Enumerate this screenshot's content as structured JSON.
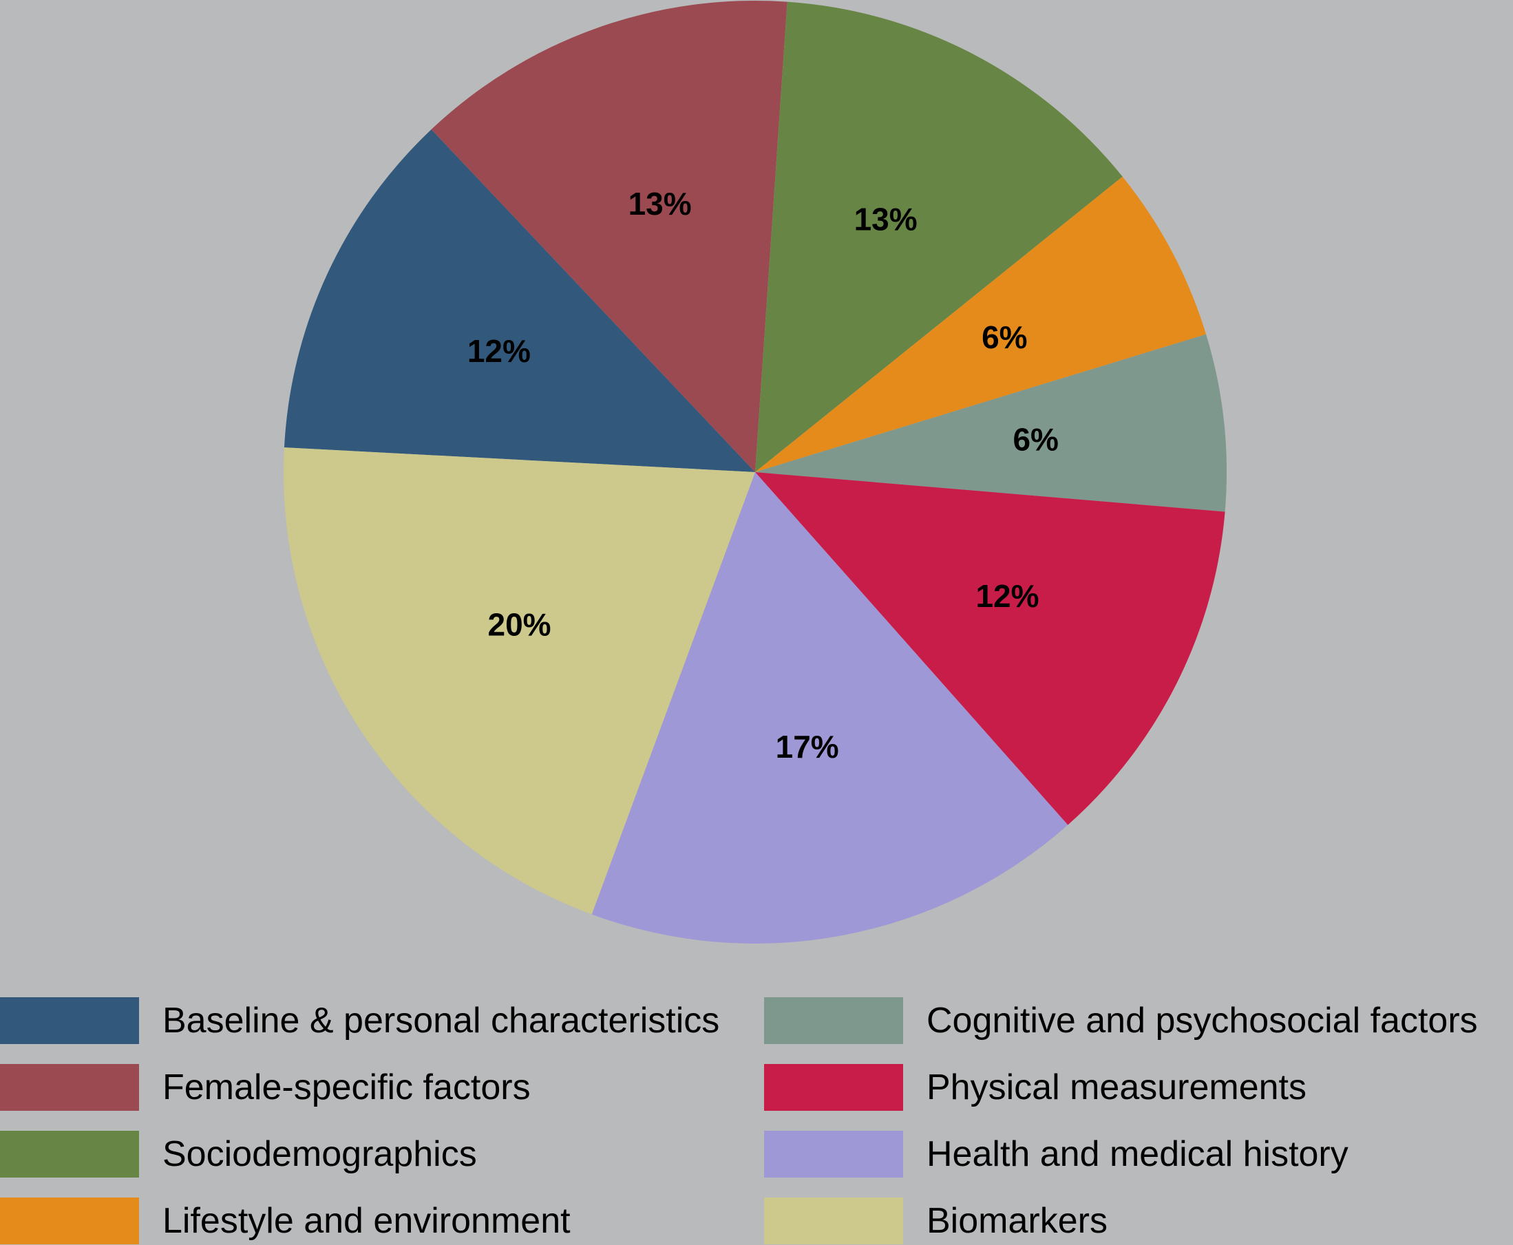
{
  "chart_data": {
    "type": "pie",
    "title": "",
    "slices": [
      {
        "name": "Baseline & personal characteristics",
        "value": 12,
        "label": "12%",
        "color": "#32597c"
      },
      {
        "name": "Female-specific factors",
        "value": 13,
        "label": "13%",
        "color": "#9a4a50"
      },
      {
        "name": "Sociodemographics",
        "value": 13,
        "label": "13%",
        "color": "#678645"
      },
      {
        "name": "Lifestyle and environment",
        "value": 6,
        "label": "6%",
        "color": "#e58b1b"
      },
      {
        "name": "Cognitive and psychosocial factors",
        "value": 6,
        "label": "6%",
        "color": "#7f988e"
      },
      {
        "name": "Physical measurements",
        "value": 12,
        "label": "12%",
        "color": "#c81d48"
      },
      {
        "name": "Health and medical history",
        "value": 17,
        "label": "17%",
        "color": "#9f98d6"
      },
      {
        "name": "Biomarkers",
        "value": 20,
        "label": "20%",
        "color": "#cdc98c"
      }
    ],
    "legend_placement": "bottom",
    "legend_columns": [
      [
        "Baseline & personal characteristics",
        "Female-specific factors",
        "Sociodemographics",
        "Lifestyle and environment"
      ],
      [
        "Cognitive and psychosocial factors",
        "Physical measurements",
        "Health and medical history",
        "Biomarkers"
      ]
    ]
  }
}
